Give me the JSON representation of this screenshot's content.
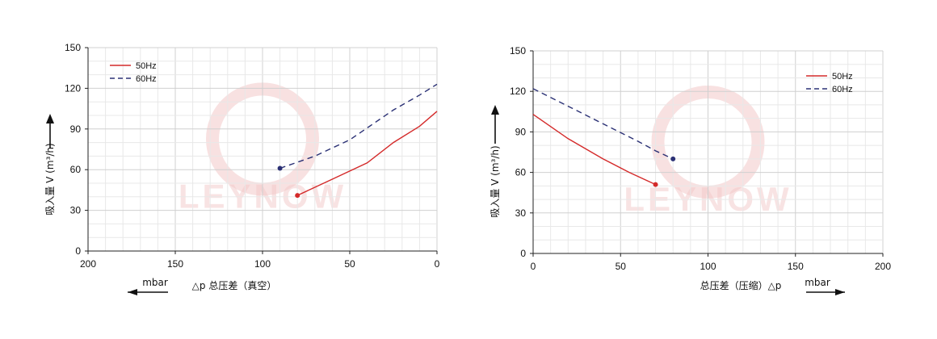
{
  "chart_data": [
    {
      "type": "line",
      "xlim": [
        200,
        0
      ],
      "ylim": [
        0,
        150
      ],
      "xticks": [
        "200",
        "150",
        "100",
        "50",
        "0"
      ],
      "yticks": [
        "0",
        "30",
        "60",
        "90",
        "120",
        "150"
      ],
      "ylabel": "吸入量 V (m³/h)",
      "xlabel": "△p 总压差（真空）",
      "xunit": "mbar",
      "legend_position": "top-left",
      "grid": true,
      "series": [
        {
          "name": "50Hz",
          "color": "#d42a2a",
          "dash": false,
          "points": [
            [
              80,
              41
            ],
            [
              60,
              53
            ],
            [
              40,
              65
            ],
            [
              25,
              80
            ],
            [
              10,
              92
            ],
            [
              0,
              103
            ]
          ]
        },
        {
          "name": "60Hz",
          "color": "#2b3175",
          "dash": true,
          "points": [
            [
              90,
              61
            ],
            [
              70,
              70
            ],
            [
              50,
              82
            ],
            [
              25,
              104
            ],
            [
              10,
              115
            ],
            [
              0,
              123
            ]
          ]
        }
      ]
    },
    {
      "type": "line",
      "xlim": [
        0,
        200
      ],
      "ylim": [
        0,
        150
      ],
      "xticks": [
        "0",
        "50",
        "100",
        "150",
        "200"
      ],
      "yticks": [
        "0",
        "30",
        "60",
        "90",
        "120",
        "150"
      ],
      "ylabel": "吸入量 V (m³/h)",
      "xlabel": "总压差（压缩）△p",
      "xunit": "mbar",
      "legend_position": "top-right",
      "grid": true,
      "series": [
        {
          "name": "50Hz",
          "color": "#d42a2a",
          "dash": false,
          "points": [
            [
              0,
              103
            ],
            [
              20,
              85
            ],
            [
              40,
              70
            ],
            [
              55,
              60
            ],
            [
              70,
              51
            ]
          ]
        },
        {
          "name": "60Hz",
          "color": "#2b3175",
          "dash": true,
          "points": [
            [
              0,
              122
            ],
            [
              20,
              109
            ],
            [
              40,
              96
            ],
            [
              60,
              83
            ],
            [
              70,
              76
            ],
            [
              80,
              70
            ]
          ]
        }
      ]
    }
  ],
  "watermark": {
    "text": "LEYNOW",
    "color": "#f3c9c9"
  }
}
